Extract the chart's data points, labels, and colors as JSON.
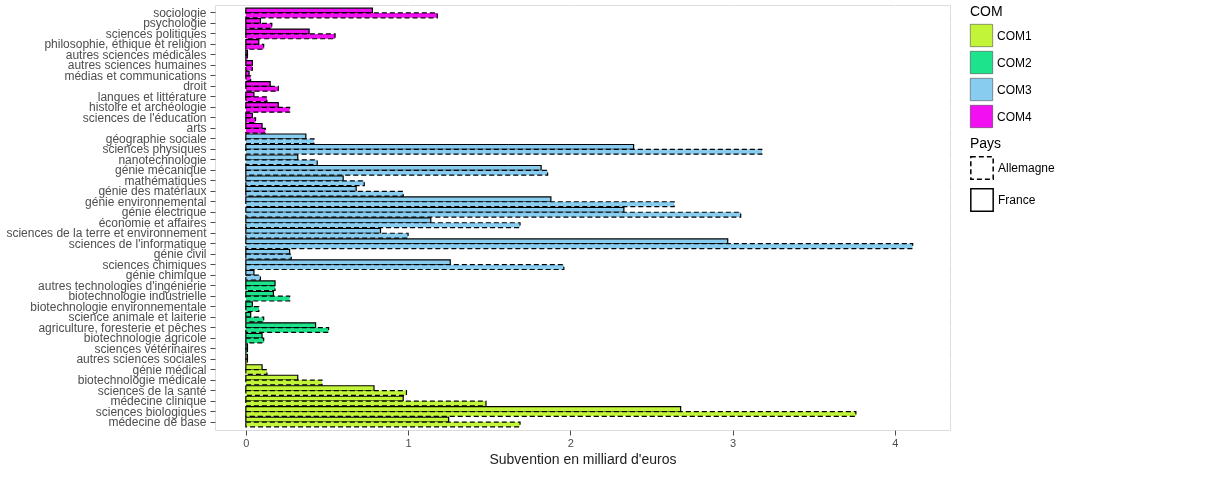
{
  "chart_data": {
    "type": "bar",
    "orientation": "horizontal",
    "xlabel": "Subvention en milliard d'euros",
    "legend_title": [
      "Pays",
      "COM"
    ],
    "legend": "right",
    "grid": true,
    "xlim": [
      -0.19,
      4.34
    ],
    "xticks": [
      0,
      1,
      2,
      3,
      4
    ],
    "categories": [
      "sociologie",
      "psychologie",
      "sciences politiques",
      "philosophie, éthique et religion",
      "autres sciences médicales",
      "autres sciences humaines",
      "médias et communications",
      "droit",
      "langues et littérature",
      "histoire et archéologie",
      "sciences de l'éducation",
      "arts",
      "géographie sociale",
      "sciences physiques",
      "nanotechnologie",
      "génie mécanique",
      "mathématiques",
      "génie des matériaux",
      "génie environnemental",
      "génie électrique",
      "économie et affaires",
      "sciences de la terre et environnement",
      "sciences de l'informatique",
      "génie civil",
      "sciences chimiques",
      "génie chimique",
      "autres technologies d'ingénierie",
      "biotechnologie industrielle",
      "biotechnologie environnementale",
      "science animale et laiterie",
      "agriculture, foresterie et pêches",
      "biotechnologie agricole",
      "sciences vétérinaires",
      "autres sciences sociales",
      "génie médical",
      "biotechnologie médicale",
      "sciences de la santé",
      "médecine clinique",
      "sciences biologiques",
      "médecine de base"
    ],
    "series": [
      {
        "name": "COM1",
        "color": "#c2f53a",
        "values": [
          null,
          null,
          null,
          null,
          null,
          null,
          null,
          null,
          null,
          null,
          null,
          null,
          null,
          null,
          null,
          null,
          null,
          null,
          null,
          null,
          null,
          null,
          null,
          null,
          null,
          null,
          null,
          null,
          null,
          null,
          null,
          null,
          null,
          null,
          null,
          null,
          null,
          null,
          null,
          null
        ]
      },
      {
        "name": "COM2",
        "color": "#1de38c",
        "values": [
          null,
          null,
          null,
          null,
          null,
          null,
          null,
          null,
          null,
          null,
          null,
          null,
          null,
          null,
          null,
          null,
          null,
          null,
          null,
          null,
          null,
          null,
          null,
          null,
          null,
          null,
          null,
          null,
          null,
          null,
          null,
          null,
          null,
          null,
          null,
          null,
          null,
          null,
          null,
          null
        ]
      },
      {
        "name": "COM3",
        "color": "#88cdf0",
        "values": [
          null,
          null,
          null,
          null,
          null,
          null,
          null,
          null,
          null,
          null,
          null,
          null,
          null,
          null,
          null,
          null,
          null,
          null,
          null,
          null,
          null,
          null,
          null,
          null,
          null,
          null,
          null,
          null,
          null,
          null,
          null,
          null,
          null,
          null,
          null,
          null,
          null,
          null,
          null,
          null
        ]
      },
      {
        "name": "COM4",
        "color": "#f20ff2",
        "values": [
          null,
          null,
          null,
          null,
          null,
          null,
          null,
          null,
          null,
          null,
          null,
          null,
          null,
          null,
          null,
          null,
          null,
          null,
          null,
          null,
          null,
          null,
          null,
          null,
          null,
          null,
          null,
          null,
          null,
          null,
          null,
          null,
          null,
          null,
          null,
          null,
          null,
          null,
          null,
          null
        ]
      },
      {
        "name": "France",
        "values": [
          0.78,
          0.09,
          0.39,
          0.08,
          0.01,
          0.04,
          0.02,
          0.15,
          0.05,
          0.2,
          0.04,
          0.1,
          0.37,
          2.39,
          0.32,
          1.82,
          0.6,
          0.68,
          1.88,
          2.33,
          1.14,
          0.83,
          2.97,
          0.27,
          1.26,
          0.05,
          0.18,
          0.17,
          0.04,
          0.03,
          0.43,
          0.1,
          0.01,
          0.01,
          0.1,
          0.32,
          0.79,
          0.97,
          2.68,
          1.25
        ],
        "colors": [
          "#f20ff2",
          "#f20ff2",
          "#f20ff2",
          "#f20ff2",
          "#f20ff2",
          "#f20ff2",
          "#f20ff2",
          "#f20ff2",
          "#f20ff2",
          "#f20ff2",
          "#f20ff2",
          "#f20ff2",
          "#88cdf0",
          "#88cdf0",
          "#88cdf0",
          "#88cdf0",
          "#88cdf0",
          "#88cdf0",
          "#88cdf0",
          "#88cdf0",
          "#88cdf0",
          "#88cdf0",
          "#88cdf0",
          "#88cdf0",
          "#88cdf0",
          "#88cdf0",
          "#1de38c",
          "#1de38c",
          "#1de38c",
          "#1de38c",
          "#1de38c",
          "#1de38c",
          "#1de38c",
          "#c2f53a",
          "#c2f53a",
          "#c2f53a",
          "#c2f53a",
          "#c2f53a",
          "#c2f53a",
          "#c2f53a"
        ]
      },
      {
        "name": "Allemagne",
        "line_style": "dashed",
        "values": [
          1.18,
          0.16,
          0.55,
          0.11,
          0.01,
          0.04,
          0.03,
          0.2,
          0.13,
          0.27,
          0.06,
          0.12,
          0.42,
          3.18,
          0.44,
          1.86,
          0.73,
          0.97,
          2.64,
          3.05,
          1.69,
          1.0,
          4.11,
          0.28,
          1.96,
          0.09,
          0.18,
          0.27,
          0.08,
          0.11,
          0.51,
          0.11,
          0.01,
          0.01,
          0.13,
          0.47,
          0.99,
          1.48,
          3.76,
          1.69
        ],
        "colors": [
          "#f20ff2",
          "#f20ff2",
          "#f20ff2",
          "#f20ff2",
          "#f20ff2",
          "#f20ff2",
          "#f20ff2",
          "#f20ff2",
          "#f20ff2",
          "#f20ff2",
          "#f20ff2",
          "#f20ff2",
          "#88cdf0",
          "#88cdf0",
          "#88cdf0",
          "#88cdf0",
          "#88cdf0",
          "#88cdf0",
          "#88cdf0",
          "#88cdf0",
          "#88cdf0",
          "#88cdf0",
          "#88cdf0",
          "#88cdf0",
          "#88cdf0",
          "#88cdf0",
          "#1de38c",
          "#1de38c",
          "#1de38c",
          "#1de38c",
          "#1de38c",
          "#1de38c",
          "#1de38c",
          "#c2f53a",
          "#c2f53a",
          "#c2f53a",
          "#c2f53a",
          "#c2f53a",
          "#c2f53a",
          "#c2f53a"
        ]
      }
    ]
  }
}
